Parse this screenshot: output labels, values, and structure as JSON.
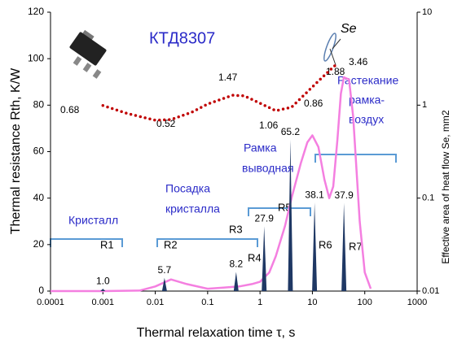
{
  "chart_data": {
    "type": "spectrum",
    "x_label": "Thermal relaxation time τ, s",
    "y_label": "Thermal resistance Rth, K/W",
    "y2_label": "Effective area of heat flow Se, mm2",
    "device": "КТД8307",
    "se_label": "Se",
    "regions": [
      [
        "Кристалл"
      ],
      [
        "Посадка",
        "кристалла"
      ],
      [
        "Рамка",
        "выводная"
      ],
      [
        "Растекание",
        "рамка-",
        "воздух"
      ]
    ],
    "se_point_labels": [
      0.68,
      0.52,
      1.47,
      1.06,
      0.86,
      1.88,
      3.46
    ],
    "xscale": "log",
    "xlim": [
      0.0001,
      1000
    ],
    "xticks": [
      0.0001,
      0.001,
      0.01,
      0.1,
      1,
      10,
      100,
      1000
    ],
    "ylim": [
      0,
      120
    ],
    "yticks": [
      0,
      20,
      40,
      60,
      80,
      100,
      120
    ],
    "y2scale": "log",
    "y2lim": [
      0.01,
      10
    ],
    "y2ticks": [
      0.01,
      0.1,
      1,
      10
    ],
    "peaks": {
      "names": [
        "R1",
        "R2",
        "R3",
        "R4",
        "R5",
        "R6",
        "R7"
      ],
      "color": "#1f3864",
      "x": [
        0.001,
        0.015,
        0.35,
        1.2,
        3.8,
        11,
        40
      ],
      "values": [
        1.0,
        5.7,
        8.2,
        27.9,
        65.2,
        38.1,
        37.9
      ],
      "value_labels": [
        "1.0",
        "5.7",
        "8.2",
        "27.9",
        "65.2",
        "38.1",
        "37.9"
      ]
    },
    "series": [
      {
        "color": "#f47fe0",
        "x": [
          0.0001,
          0.001,
          0.005,
          0.01,
          0.02,
          0.04,
          0.1,
          0.2,
          0.4,
          0.7,
          1,
          1.5,
          2,
          3,
          4,
          6,
          8,
          10,
          13,
          17,
          21,
          25,
          30,
          35,
          40,
          50,
          60,
          80,
          100,
          130
        ],
        "values": [
          0,
          0,
          0.2,
          2,
          5,
          3,
          1,
          1.5,
          2,
          3,
          4,
          8,
          15,
          28,
          40,
          55,
          64,
          67,
          62,
          48,
          40,
          45,
          65,
          85,
          92,
          91,
          75,
          30,
          8,
          1
        ]
      },
      {
        "color": "#c00000",
        "axis": "y2",
        "x": [
          0.001,
          0.003,
          0.01,
          0.02,
          0.05,
          0.1,
          0.3,
          0.5,
          1,
          2,
          4,
          8,
          15,
          30
        ],
        "values": [
          0.99,
          0.81,
          0.69,
          0.7,
          0.84,
          1.03,
          1.28,
          1.26,
          1.05,
          0.87,
          0.95,
          1.39,
          1.96,
          2.82
        ]
      }
    ]
  }
}
